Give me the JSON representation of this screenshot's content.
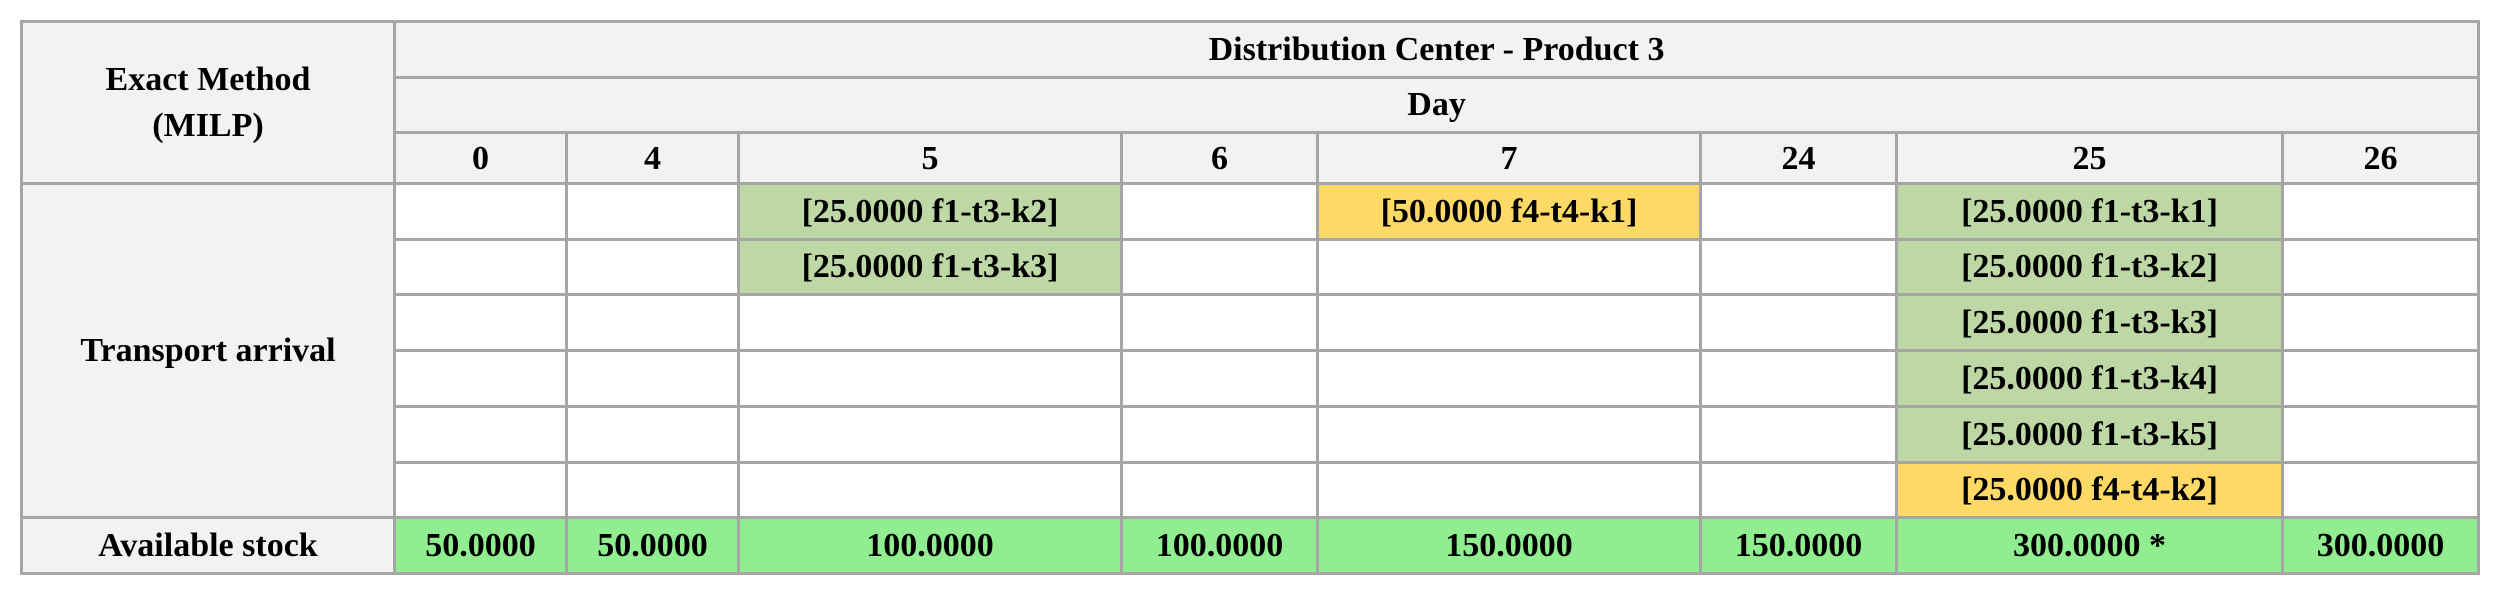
{
  "table": {
    "corner_label": [
      "Exact Method",
      "(MILP)"
    ],
    "title": "Distribution Center - Product 3",
    "subheader": "Day",
    "days": [
      "0",
      "4",
      "5",
      "6",
      "7",
      "24",
      "25",
      "26"
    ],
    "transport_label": "Transport arrival",
    "transport_rows": [
      [
        "",
        "",
        "[25.0000 f1-t3-k2]",
        "",
        "[50.0000 f4-t4-k1]",
        "",
        "[25.0000 f1-t3-k1]",
        ""
      ],
      [
        "",
        "",
        "[25.0000 f1-t3-k3]",
        "",
        "",
        "",
        "[25.0000 f1-t3-k2]",
        ""
      ],
      [
        "",
        "",
        "",
        "",
        "",
        "",
        "[25.0000 f1-t3-k3]",
        ""
      ],
      [
        "",
        "",
        "",
        "",
        "",
        "",
        "[25.0000 f1-t3-k4]",
        ""
      ],
      [
        "",
        "",
        "",
        "",
        "",
        "",
        "[25.0000 f1-t3-k5]",
        ""
      ],
      [
        "",
        "",
        "",
        "",
        "",
        "",
        "[25.0000 f4-t4-k2]",
        ""
      ]
    ],
    "transport_fill": [
      [
        "",
        "",
        "#bdd7a5",
        "",
        "#ffd966",
        "",
        "#bdd7a5",
        ""
      ],
      [
        "",
        "",
        "#bdd7a5",
        "",
        "",
        "",
        "#bdd7a5",
        ""
      ],
      [
        "",
        "",
        "",
        "",
        "",
        "",
        "#bdd7a5",
        ""
      ],
      [
        "",
        "",
        "",
        "",
        "",
        "",
        "#bdd7a5",
        ""
      ],
      [
        "",
        "",
        "",
        "",
        "",
        "",
        "#bdd7a5",
        ""
      ],
      [
        "",
        "",
        "",
        "",
        "",
        "",
        "#ffd966",
        ""
      ]
    ],
    "stock_label": "Available stock",
    "stock_values": [
      "50.0000",
      "50.0000",
      "100.0000",
      "100.0000",
      "150.0000",
      "150.0000",
      "300.0000 *",
      "300.0000"
    ]
  }
}
